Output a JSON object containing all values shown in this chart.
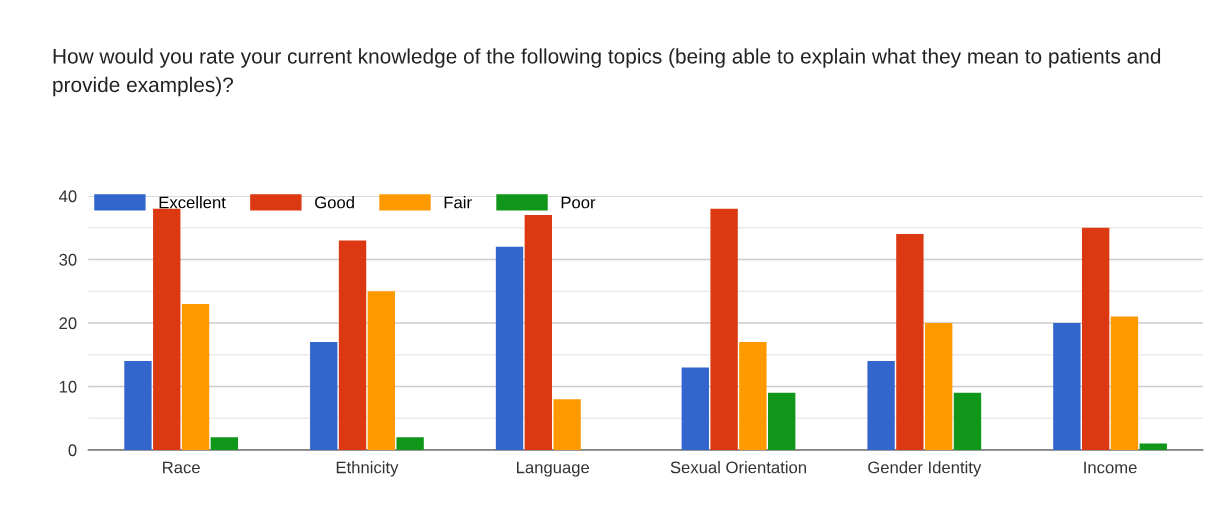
{
  "chart_data": {
    "type": "bar",
    "title": "How would you rate your current knowledge of the following topics (being able to explain what they mean to patients and provide examples)?",
    "categories": [
      "Race",
      "Ethnicity",
      "Language",
      "Sexual Orientation",
      "Gender Identity",
      "Income"
    ],
    "series": [
      {
        "name": "Excellent",
        "color": "#3366cc",
        "values": [
          14,
          17,
          32,
          13,
          14,
          20
        ]
      },
      {
        "name": "Good",
        "color": "#dc3912",
        "values": [
          38,
          33,
          37,
          38,
          34,
          35
        ]
      },
      {
        "name": "Fair",
        "color": "#ff9900",
        "values": [
          23,
          25,
          8,
          17,
          20,
          21
        ]
      },
      {
        "name": "Poor",
        "color": "#109618",
        "values": [
          2,
          2,
          0,
          9,
          9,
          1
        ]
      }
    ],
    "ylim": [
      0,
      40
    ],
    "yticks": [
      0,
      {
        "value": 5,
        "label": null
      },
      10,
      {
        "value": 15,
        "label": null
      },
      20,
      {
        "value": 25,
        "label": null
      },
      30,
      {
        "value": 35,
        "label": null
      },
      40
    ],
    "grid": "y",
    "legend": "top left"
  }
}
